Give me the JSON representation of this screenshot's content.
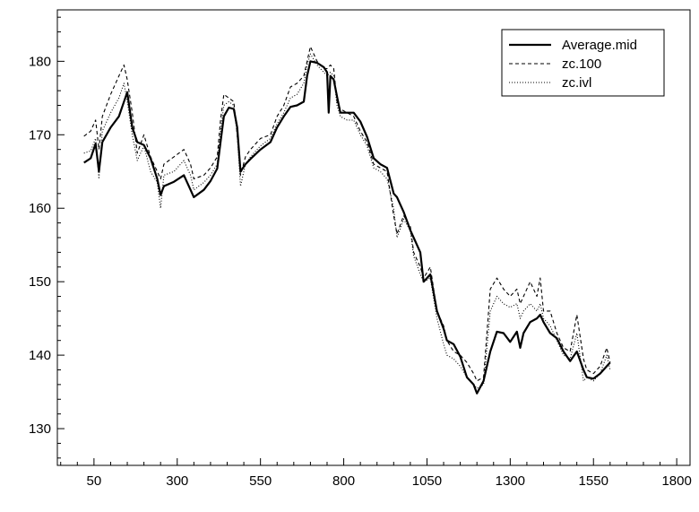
{
  "chart_data": {
    "type": "line",
    "title": "",
    "xlabel": "",
    "ylabel": "",
    "xlim": [
      -60,
      1840
    ],
    "ylim": [
      125,
      187
    ],
    "xticks": [
      50,
      300,
      550,
      800,
      1050,
      1300,
      1550,
      1800
    ],
    "yticks": [
      130,
      140,
      150,
      160,
      170,
      180
    ],
    "xtick_labels": [
      "50",
      "300",
      "550",
      "800",
      "1050",
      "1300",
      "1550",
      "1800"
    ],
    "ytick_labels": [
      "130",
      "140",
      "150",
      "160",
      "170",
      "180"
    ],
    "x_minor_step": 50,
    "y_minor_step": 2,
    "grid": false,
    "legend_position": "top-right",
    "series": [
      {
        "name": "Average.mid",
        "style": "solid",
        "color": "#000000",
        "points": [
          [
            20,
            166.2
          ],
          [
            40,
            166.8
          ],
          [
            55,
            168.8
          ],
          [
            65,
            165
          ],
          [
            75,
            169
          ],
          [
            100,
            171
          ],
          [
            125,
            172.5
          ],
          [
            150,
            175.8
          ],
          [
            165,
            171
          ],
          [
            180,
            169
          ],
          [
            200,
            168.6
          ],
          [
            220,
            166.8
          ],
          [
            240,
            164
          ],
          [
            250,
            161.8
          ],
          [
            260,
            163
          ],
          [
            290,
            163.6
          ],
          [
            320,
            164.5
          ],
          [
            340,
            162.5
          ],
          [
            350,
            161.5
          ],
          [
            380,
            162.5
          ],
          [
            400,
            163.7
          ],
          [
            420,
            165.4
          ],
          [
            430,
            169
          ],
          [
            440,
            172.5
          ],
          [
            455,
            173.7
          ],
          [
            470,
            173.5
          ],
          [
            480,
            171
          ],
          [
            490,
            165
          ],
          [
            505,
            166
          ],
          [
            520,
            166.7
          ],
          [
            550,
            168
          ],
          [
            580,
            169
          ],
          [
            600,
            171
          ],
          [
            620,
            172.5
          ],
          [
            640,
            173.8
          ],
          [
            660,
            174
          ],
          [
            680,
            174.5
          ],
          [
            690,
            178
          ],
          [
            700,
            180
          ],
          [
            720,
            179.8
          ],
          [
            740,
            179.2
          ],
          [
            750,
            178.5
          ],
          [
            755,
            173
          ],
          [
            760,
            178
          ],
          [
            770,
            177.5
          ],
          [
            780,
            175.2
          ],
          [
            790,
            173
          ],
          [
            810,
            173
          ],
          [
            830,
            173
          ],
          [
            850,
            171.8
          ],
          [
            870,
            169.7
          ],
          [
            890,
            166.8
          ],
          [
            910,
            166
          ],
          [
            930,
            165.5
          ],
          [
            950,
            162
          ],
          [
            960,
            161.5
          ],
          [
            980,
            159.5
          ],
          [
            1000,
            157
          ],
          [
            1010,
            156
          ],
          [
            1030,
            154
          ],
          [
            1040,
            150
          ],
          [
            1060,
            151
          ],
          [
            1080,
            146
          ],
          [
            1100,
            143.6
          ],
          [
            1110,
            142
          ],
          [
            1130,
            141.5
          ],
          [
            1150,
            139.8
          ],
          [
            1170,
            137
          ],
          [
            1190,
            136
          ],
          [
            1200,
            134.8
          ],
          [
            1220,
            136.5
          ],
          [
            1240,
            140.5
          ],
          [
            1260,
            143.2
          ],
          [
            1280,
            143
          ],
          [
            1300,
            141.8
          ],
          [
            1320,
            143.2
          ],
          [
            1330,
            141
          ],
          [
            1340,
            143
          ],
          [
            1360,
            144.5
          ],
          [
            1380,
            145
          ],
          [
            1390,
            145.5
          ],
          [
            1400,
            144.5
          ],
          [
            1420,
            143
          ],
          [
            1440,
            142.3
          ],
          [
            1460,
            140.5
          ],
          [
            1480,
            139.2
          ],
          [
            1500,
            140.5
          ],
          [
            1520,
            138
          ],
          [
            1530,
            137
          ],
          [
            1550,
            136.8
          ],
          [
            1570,
            137.5
          ],
          [
            1590,
            138.5
          ],
          [
            1600,
            139
          ]
        ]
      },
      {
        "name": "zc.100",
        "style": "dashed",
        "color": "#000000",
        "points": [
          [
            20,
            169.8
          ],
          [
            40,
            170.5
          ],
          [
            55,
            172
          ],
          [
            65,
            168
          ],
          [
            75,
            172.5
          ],
          [
            100,
            175.5
          ],
          [
            125,
            178
          ],
          [
            140,
            179.5
          ],
          [
            150,
            177.5
          ],
          [
            165,
            173
          ],
          [
            180,
            167.5
          ],
          [
            200,
            170
          ],
          [
            220,
            167
          ],
          [
            240,
            165
          ],
          [
            250,
            164
          ],
          [
            260,
            166
          ],
          [
            290,
            167
          ],
          [
            320,
            168
          ],
          [
            340,
            166
          ],
          [
            350,
            164
          ],
          [
            380,
            164.5
          ],
          [
            400,
            165.5
          ],
          [
            420,
            167
          ],
          [
            430,
            172
          ],
          [
            440,
            175.5
          ],
          [
            455,
            175
          ],
          [
            470,
            174.5
          ],
          [
            480,
            170
          ],
          [
            490,
            164.5
          ],
          [
            505,
            167
          ],
          [
            520,
            168
          ],
          [
            550,
            169.5
          ],
          [
            580,
            170
          ],
          [
            600,
            172.5
          ],
          [
            620,
            174
          ],
          [
            640,
            176.5
          ],
          [
            660,
            177
          ],
          [
            680,
            178
          ],
          [
            690,
            180
          ],
          [
            700,
            182
          ],
          [
            720,
            180
          ],
          [
            740,
            179
          ],
          [
            750,
            179
          ],
          [
            760,
            179.5
          ],
          [
            770,
            179
          ],
          [
            780,
            174.5
          ],
          [
            790,
            173.5
          ],
          [
            810,
            173
          ],
          [
            830,
            172.5
          ],
          [
            850,
            170.5
          ],
          [
            870,
            169
          ],
          [
            890,
            166
          ],
          [
            910,
            165.5
          ],
          [
            930,
            165
          ],
          [
            950,
            159
          ],
          [
            960,
            156.5
          ],
          [
            980,
            159
          ],
          [
            1000,
            157.5
          ],
          [
            1010,
            154
          ],
          [
            1030,
            152
          ],
          [
            1040,
            150.5
          ],
          [
            1060,
            152
          ],
          [
            1080,
            146
          ],
          [
            1100,
            144
          ],
          [
            1110,
            142
          ],
          [
            1130,
            140.5
          ],
          [
            1150,
            140
          ],
          [
            1170,
            139
          ],
          [
            1190,
            137.5
          ],
          [
            1200,
            136.5
          ],
          [
            1220,
            137
          ],
          [
            1240,
            149
          ],
          [
            1260,
            150.5
          ],
          [
            1280,
            149
          ],
          [
            1300,
            148
          ],
          [
            1320,
            149
          ],
          [
            1330,
            147
          ],
          [
            1340,
            148
          ],
          [
            1360,
            150
          ],
          [
            1380,
            148
          ],
          [
            1390,
            150.5
          ],
          [
            1400,
            146
          ],
          [
            1420,
            146
          ],
          [
            1440,
            143
          ],
          [
            1460,
            141
          ],
          [
            1480,
            140.5
          ],
          [
            1500,
            145.5
          ],
          [
            1520,
            139.5
          ],
          [
            1530,
            138
          ],
          [
            1550,
            137.5
          ],
          [
            1570,
            138.5
          ],
          [
            1590,
            141
          ],
          [
            1600,
            139
          ]
        ]
      },
      {
        "name": "zc.ivl",
        "style": "dotted",
        "color": "#000000",
        "points": [
          [
            20,
            167.5
          ],
          [
            40,
            167.8
          ],
          [
            55,
            169.5
          ],
          [
            65,
            164
          ],
          [
            75,
            170.5
          ],
          [
            100,
            173
          ],
          [
            125,
            175
          ],
          [
            140,
            177
          ],
          [
            150,
            174.5
          ],
          [
            165,
            170
          ],
          [
            180,
            166.5
          ],
          [
            200,
            168.5
          ],
          [
            220,
            165
          ],
          [
            240,
            163.5
          ],
          [
            250,
            160
          ],
          [
            260,
            164.5
          ],
          [
            290,
            165
          ],
          [
            320,
            166.5
          ],
          [
            340,
            164.5
          ],
          [
            350,
            162.5
          ],
          [
            380,
            163.5
          ],
          [
            400,
            164.5
          ],
          [
            420,
            166
          ],
          [
            430,
            170.5
          ],
          [
            440,
            174
          ],
          [
            455,
            174.5
          ],
          [
            470,
            174
          ],
          [
            480,
            170
          ],
          [
            490,
            163
          ],
          [
            505,
            166
          ],
          [
            520,
            167
          ],
          [
            550,
            168.5
          ],
          [
            580,
            169.5
          ],
          [
            600,
            171.5
          ],
          [
            620,
            173
          ],
          [
            640,
            175
          ],
          [
            660,
            175.5
          ],
          [
            680,
            177
          ],
          [
            690,
            179.5
          ],
          [
            700,
            181
          ],
          [
            720,
            179.5
          ],
          [
            740,
            178.5
          ],
          [
            750,
            178
          ],
          [
            760,
            178.5
          ],
          [
            770,
            178
          ],
          [
            780,
            174
          ],
          [
            790,
            172.5
          ],
          [
            810,
            172
          ],
          [
            830,
            172
          ],
          [
            850,
            170
          ],
          [
            870,
            168.5
          ],
          [
            890,
            165.5
          ],
          [
            910,
            165
          ],
          [
            930,
            164
          ],
          [
            950,
            160
          ],
          [
            960,
            156
          ],
          [
            980,
            158.5
          ],
          [
            1000,
            157
          ],
          [
            1010,
            153.5
          ],
          [
            1030,
            151
          ],
          [
            1040,
            150
          ],
          [
            1060,
            150.5
          ],
          [
            1080,
            145
          ],
          [
            1100,
            141.5
          ],
          [
            1110,
            140
          ],
          [
            1130,
            139.5
          ],
          [
            1150,
            138.5
          ],
          [
            1170,
            137
          ],
          [
            1190,
            136
          ],
          [
            1200,
            135.5
          ],
          [
            1220,
            136
          ],
          [
            1240,
            146
          ],
          [
            1260,
            148
          ],
          [
            1280,
            147
          ],
          [
            1300,
            146.5
          ],
          [
            1320,
            147
          ],
          [
            1330,
            145
          ],
          [
            1340,
            146
          ],
          [
            1360,
            147
          ],
          [
            1380,
            146
          ],
          [
            1390,
            147
          ],
          [
            1400,
            145
          ],
          [
            1420,
            144
          ],
          [
            1440,
            142
          ],
          [
            1460,
            140
          ],
          [
            1480,
            139.5
          ],
          [
            1500,
            143
          ],
          [
            1520,
            136.5
          ],
          [
            1530,
            137
          ],
          [
            1550,
            136.5
          ],
          [
            1570,
            137.5
          ],
          [
            1590,
            140
          ],
          [
            1600,
            138
          ]
        ]
      }
    ]
  }
}
